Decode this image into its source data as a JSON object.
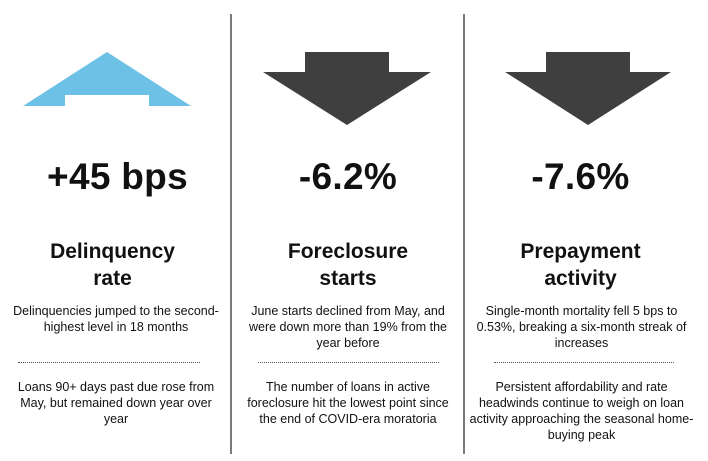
{
  "colors": {
    "arrow_up": "#6ec1e6",
    "arrow_down": "#3f3f3f",
    "divider": "#7a7a7a",
    "text": "#111111"
  },
  "panels": [
    {
      "icon": "arrow-up-icon",
      "metric": "+45 bps",
      "title_line1": "Delinquency",
      "title_line2": "rate",
      "desc_top": "Delinquencies jumped to the second-highest level in 18 months",
      "desc_bottom": "Loans 90+ days past due rose from May, but remained down year over year"
    },
    {
      "icon": "arrow-down-icon",
      "metric": "-6.2%",
      "title_line1": "Foreclosure",
      "title_line2": "starts",
      "desc_top": "June starts declined from May, and were down more than 19% from the year before",
      "desc_bottom": "The number of loans in active foreclosure hit the lowest point since the end of COVID-era moratoria"
    },
    {
      "icon": "arrow-down-icon",
      "metric": "-7.6%",
      "title_line1": "Prepayment",
      "title_line2": "activity",
      "desc_top": "Single-month mortality fell 5 bps to 0.53%, breaking a six-month streak of increases",
      "desc_bottom": "Persistent affordability and rate headwinds continue to weigh on loan activity approaching the seasonal home-buying peak"
    }
  ]
}
